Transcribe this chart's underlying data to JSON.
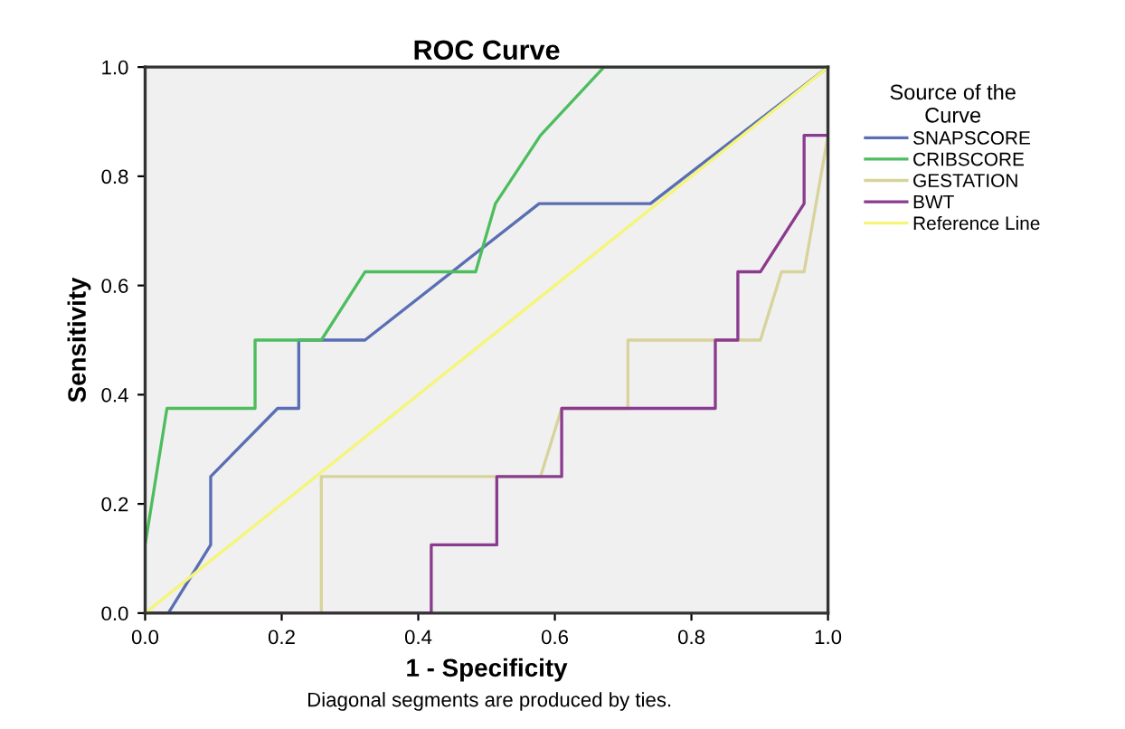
{
  "chart_data": {
    "type": "line",
    "title": "ROC Curve",
    "xlabel": "1 - Specificity",
    "ylabel": "Sensitivity",
    "legend_title": "Source of the\nCurve",
    "legend": "right",
    "xlim": [
      0,
      1
    ],
    "ylim": [
      0,
      1
    ],
    "xticks": [
      {
        "value": 0,
        "label": "0.0"
      },
      {
        "value": 0.2,
        "label": "0.2"
      },
      {
        "value": 0.4,
        "label": "0.4"
      },
      {
        "value": 0.6,
        "label": "0.6"
      },
      {
        "value": 0.8,
        "label": "0.8"
      },
      {
        "value": 1,
        "label": "1.0"
      }
    ],
    "yticks": [
      {
        "value": 0,
        "label": "0.0"
      },
      {
        "value": 0.2,
        "label": "0.2"
      },
      {
        "value": 0.4,
        "label": "0.4"
      },
      {
        "value": 0.6,
        "label": "0.6"
      },
      {
        "value": 0.8,
        "label": "0.8"
      },
      {
        "value": 1,
        "label": "1.0"
      }
    ],
    "grid": false,
    "marker": "none",
    "line_style": "solid",
    "annotations": [
      "Diagonal segments are produced by ties."
    ],
    "series": [
      {
        "name": "SNAPSCORE",
        "color": "#5a6eb4",
        "x": [
          0.034,
          0.096,
          0.096,
          0.194,
          0.225,
          0.225,
          0.322,
          0.577,
          0.74,
          1.0
        ],
        "values": [
          0,
          0.125,
          0.25,
          0.375,
          0.375,
          0.5,
          0.5,
          0.75,
          0.75,
          1.0
        ]
      },
      {
        "name": "CRIBSCORE",
        "color": "#4dbd5e",
        "x": [
          0,
          0,
          0.032,
          0.161,
          0.161,
          0.258,
          0.322,
          0.484,
          0.513,
          0.579,
          0.672,
          1.0
        ],
        "values": [
          0,
          0.125,
          0.375,
          0.375,
          0.5,
          0.5,
          0.625,
          0.625,
          0.75,
          0.875,
          1.0,
          1.0
        ]
      },
      {
        "name": "GESTATION",
        "color": "#d8d39c",
        "x": [
          0,
          0.258,
          0.258,
          0.579,
          0.61,
          0.707,
          0.707,
          0.901,
          0.932,
          0.965,
          1.0,
          1.0
        ],
        "values": [
          0,
          0,
          0.25,
          0.25,
          0.375,
          0.375,
          0.5,
          0.5,
          0.625,
          0.625,
          0.875,
          1.0
        ]
      },
      {
        "name": "BWT",
        "color": "#8b3b8f",
        "x": [
          0,
          0.419,
          0.419,
          0.515,
          0.515,
          0.61,
          0.61,
          0.835,
          0.835,
          0.868,
          0.868,
          0.901,
          0.965,
          0.965,
          1.0,
          1.0
        ],
        "values": [
          0,
          0,
          0.125,
          0.125,
          0.25,
          0.25,
          0.375,
          0.375,
          0.5,
          0.5,
          0.625,
          0.625,
          0.75,
          0.875,
          0.875,
          1.0
        ]
      },
      {
        "name": "Reference Line",
        "color": "#f5f57a",
        "x": [
          0,
          1
        ],
        "values": [
          0,
          1
        ]
      }
    ]
  }
}
